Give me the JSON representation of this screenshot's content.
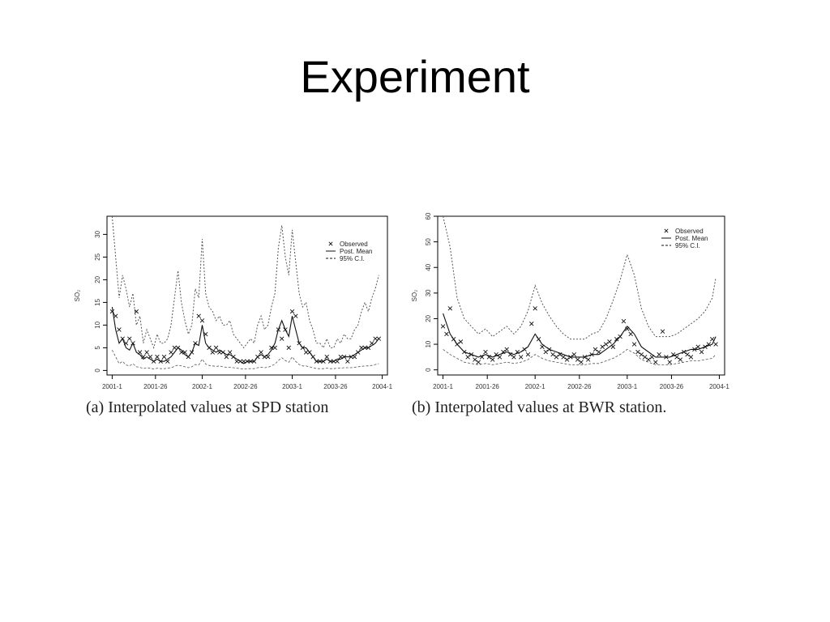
{
  "slide": {
    "title": "Experiment"
  },
  "captions": {
    "a": "(a) Interpolated values at SPD station",
    "b": "(b) Interpolated values at BWR station."
  },
  "colors": {
    "line": "#111111",
    "ci": "#555555",
    "marker": "#111111",
    "axis": "#000000"
  },
  "chart_data": [
    {
      "type": "line",
      "title": "",
      "xlabel": "",
      "ylabel": "SO₂",
      "x_tick_labels": [
        "2001-1",
        "2001-26",
        "2002-1",
        "2002-26",
        "2003-1",
        "2003-26",
        "2004-1"
      ],
      "x_tick_positions": [
        1,
        26,
        53,
        78,
        105,
        130,
        157
      ],
      "xlim": [
        -2,
        160
      ],
      "ylim": [
        -1,
        34
      ],
      "y_ticks": [
        0,
        5,
        10,
        15,
        20,
        25,
        30
      ],
      "legend": {
        "placement": "top-right",
        "entries": [
          "Observed",
          "Post. Mean",
          "95% C.I."
        ]
      },
      "x": [
        1,
        3,
        5,
        7,
        9,
        11,
        13,
        15,
        17,
        19,
        21,
        23,
        25,
        27,
        29,
        31,
        33,
        35,
        37,
        39,
        41,
        43,
        45,
        47,
        49,
        51,
        53,
        55,
        57,
        59,
        61,
        63,
        65,
        67,
        69,
        71,
        73,
        75,
        77,
        79,
        81,
        83,
        85,
        87,
        89,
        91,
        93,
        95,
        97,
        99,
        101,
        103,
        105,
        107,
        109,
        111,
        113,
        115,
        117,
        119,
        121,
        123,
        125,
        127,
        129,
        131,
        133,
        135,
        137,
        139,
        141,
        143,
        145,
        147,
        149,
        151,
        153,
        155
      ],
      "series": [
        {
          "name": "Post. Mean",
          "values": [
            14,
            9,
            6,
            7,
            5,
            4.5,
            6,
            4,
            3.5,
            2.5,
            3,
            2.5,
            2,
            2.5,
            2,
            2,
            2.5,
            3,
            4,
            5,
            4.5,
            3.5,
            3,
            4,
            6,
            5.5,
            10,
            6,
            5,
            4.5,
            4,
            4.5,
            4,
            3.5,
            3.5,
            3,
            2.5,
            2,
            1.5,
            2,
            2,
            2,
            3,
            3.5,
            3,
            3.5,
            4.5,
            6,
            9,
            11,
            9,
            7.5,
            12,
            9,
            6,
            5,
            5,
            4,
            3,
            2,
            2,
            2,
            2.5,
            2,
            2,
            2.5,
            2.5,
            3,
            3,
            3,
            3.5,
            4,
            4.5,
            5,
            5,
            5.5,
            6,
            7
          ]
        },
        {
          "name": "95% C.I.",
          "values": [
            34,
            25,
            16,
            21,
            18,
            14,
            17,
            10,
            12,
            6,
            9,
            7,
            5,
            8,
            6,
            6,
            7,
            10,
            16,
            22,
            15,
            11,
            8,
            10,
            18,
            16,
            29,
            17,
            14,
            13,
            11,
            12,
            10,
            10,
            11,
            8,
            7,
            6,
            5,
            6,
            7,
            6,
            10,
            12,
            9,
            10,
            14,
            17,
            27,
            32,
            25,
            21,
            31,
            24,
            17,
            14,
            15,
            11,
            9,
            6,
            6,
            5,
            7,
            5,
            5,
            7,
            6,
            8,
            7,
            7,
            9,
            10,
            13,
            15,
            13,
            16,
            18,
            21
          ]
        },
        {
          "name": "95% C.I. lower",
          "values": [
            4.5,
            3,
            1.5,
            2,
            1.2,
            1,
            1.5,
            0.8,
            0.7,
            0.4,
            0.6,
            0.5,
            0.3,
            0.5,
            0.4,
            0.4,
            0.5,
            0.6,
            0.9,
            1.2,
            1,
            0.8,
            0.6,
            0.8,
            1.3,
            1.2,
            2.5,
            1.4,
            1.1,
            1,
            0.9,
            1,
            0.8,
            0.7,
            0.7,
            0.6,
            0.5,
            0.4,
            0.3,
            0.4,
            0.4,
            0.4,
            0.6,
            0.7,
            0.6,
            0.7,
            1,
            1.4,
            2.2,
            2.8,
            2.2,
            1.8,
            3,
            2,
            1.3,
            1,
            1,
            0.8,
            0.6,
            0.4,
            0.4,
            0.4,
            0.5,
            0.4,
            0.4,
            0.5,
            0.5,
            0.6,
            0.6,
            0.6,
            0.7,
            0.8,
            0.9,
            1,
            1,
            1.1,
            1.3,
            1.5
          ]
        }
      ],
      "observed": [
        [
          1,
          13
        ],
        [
          3,
          12
        ],
        [
          5,
          9
        ],
        [
          7,
          7
        ],
        [
          9,
          6
        ],
        [
          11,
          7
        ],
        [
          13,
          6
        ],
        [
          15,
          13
        ],
        [
          17,
          4
        ],
        [
          19,
          3
        ],
        [
          21,
          4
        ],
        [
          23,
          3
        ],
        [
          25,
          2
        ],
        [
          27,
          3
        ],
        [
          29,
          2
        ],
        [
          31,
          3
        ],
        [
          33,
          2
        ],
        [
          35,
          4
        ],
        [
          37,
          5
        ],
        [
          39,
          5
        ],
        [
          41,
          4
        ],
        [
          43,
          4
        ],
        [
          45,
          3
        ],
        [
          47,
          4
        ],
        [
          49,
          6
        ],
        [
          51,
          12
        ],
        [
          53,
          11
        ],
        [
          55,
          8
        ],
        [
          57,
          5
        ],
        [
          59,
          4
        ],
        [
          61,
          5
        ],
        [
          63,
          4
        ],
        [
          65,
          4
        ],
        [
          67,
          3
        ],
        [
          69,
          4
        ],
        [
          71,
          3
        ],
        [
          73,
          2
        ],
        [
          75,
          2
        ],
        [
          77,
          2
        ],
        [
          79,
          2
        ],
        [
          81,
          2
        ],
        [
          83,
          2
        ],
        [
          85,
          3
        ],
        [
          87,
          4
        ],
        [
          89,
          3
        ],
        [
          91,
          3
        ],
        [
          93,
          5
        ],
        [
          95,
          5
        ],
        [
          97,
          9
        ],
        [
          99,
          7
        ],
        [
          101,
          9
        ],
        [
          103,
          5
        ],
        [
          105,
          13
        ],
        [
          107,
          12
        ],
        [
          109,
          6
        ],
        [
          111,
          5
        ],
        [
          113,
          4
        ],
        [
          115,
          4
        ],
        [
          117,
          3
        ],
        [
          119,
          2
        ],
        [
          121,
          2
        ],
        [
          123,
          2
        ],
        [
          125,
          3
        ],
        [
          127,
          2
        ],
        [
          129,
          2
        ],
        [
          131,
          2
        ],
        [
          133,
          3
        ],
        [
          135,
          3
        ],
        [
          137,
          2
        ],
        [
          139,
          3
        ],
        [
          141,
          3
        ],
        [
          143,
          4
        ],
        [
          145,
          5
        ],
        [
          147,
          5
        ],
        [
          149,
          5
        ],
        [
          151,
          6
        ],
        [
          153,
          7
        ],
        [
          155,
          7
        ]
      ]
    },
    {
      "type": "line",
      "title": "",
      "xlabel": "",
      "ylabel": "SO₂",
      "x_tick_labels": [
        "2001-1",
        "2001-26",
        "2002-1",
        "2002-26",
        "2003-1",
        "2003-26",
        "2004-1"
      ],
      "x_tick_positions": [
        1,
        26,
        53,
        78,
        105,
        130,
        157
      ],
      "xlim": [
        -2,
        160
      ],
      "ylim": [
        -2,
        60
      ],
      "y_ticks": [
        0,
        10,
        20,
        30,
        40,
        50,
        60
      ],
      "legend": {
        "placement": "top-right",
        "entries": [
          "Observed",
          "Post. Mean",
          "95% C.I."
        ]
      },
      "x": [
        1,
        5,
        9,
        13,
        17,
        21,
        25,
        29,
        33,
        37,
        41,
        45,
        49,
        53,
        57,
        61,
        65,
        69,
        73,
        77,
        81,
        85,
        89,
        93,
        97,
        101,
        105,
        109,
        113,
        117,
        121,
        125,
        129,
        133,
        137,
        141,
        145,
        149,
        153,
        155
      ],
      "series": [
        {
          "name": "Post. Mean",
          "values": [
            22,
            14,
            10,
            7,
            6,
            5,
            6,
            5,
            6,
            7,
            6,
            7,
            9,
            14,
            10,
            8,
            7,
            6,
            5,
            5,
            5,
            6,
            6,
            8,
            10,
            13,
            17,
            14,
            9,
            7,
            5,
            5,
            5,
            6,
            7,
            8,
            8,
            9,
            10,
            13
          ]
        },
        {
          "name": "95% C.I.",
          "values": [
            60,
            48,
            28,
            20,
            17,
            14,
            16,
            13,
            15,
            17,
            14,
            17,
            23,
            33,
            26,
            21,
            17,
            14,
            12,
            12,
            12,
            14,
            15,
            20,
            27,
            35,
            45,
            37,
            24,
            17,
            13,
            13,
            13,
            14,
            16,
            18,
            20,
            23,
            28,
            36
          ]
        },
        {
          "name": "95% C.I. lower",
          "values": [
            8,
            6,
            4.5,
            3,
            2.5,
            2,
            2.5,
            2,
            2.5,
            3,
            2.5,
            3,
            4,
            6,
            4.5,
            3.5,
            3,
            2.5,
            2,
            2,
            2,
            2.5,
            2.5,
            3.5,
            4.5,
            6,
            8,
            6.5,
            4,
            3,
            2,
            2,
            2,
            2.5,
            3,
            3.5,
            3.5,
            4,
            4.5,
            6
          ]
        }
      ],
      "observed": [
        [
          1,
          17
        ],
        [
          3,
          14
        ],
        [
          5,
          24
        ],
        [
          7,
          12
        ],
        [
          9,
          10
        ],
        [
          11,
          11
        ],
        [
          13,
          7
        ],
        [
          15,
          5
        ],
        [
          17,
          6
        ],
        [
          19,
          4
        ],
        [
          21,
          3
        ],
        [
          23,
          5
        ],
        [
          25,
          7
        ],
        [
          27,
          5
        ],
        [
          29,
          4
        ],
        [
          31,
          6
        ],
        [
          33,
          5
        ],
        [
          35,
          7
        ],
        [
          37,
          8
        ],
        [
          39,
          6
        ],
        [
          41,
          5
        ],
        [
          43,
          7
        ],
        [
          45,
          5
        ],
        [
          47,
          8
        ],
        [
          49,
          6
        ],
        [
          51,
          18
        ],
        [
          53,
          24
        ],
        [
          55,
          12
        ],
        [
          57,
          9
        ],
        [
          59,
          7
        ],
        [
          61,
          8
        ],
        [
          63,
          6
        ],
        [
          65,
          5
        ],
        [
          67,
          6
        ],
        [
          69,
          5
        ],
        [
          71,
          4
        ],
        [
          73,
          5
        ],
        [
          75,
          6
        ],
        [
          77,
          4
        ],
        [
          79,
          3
        ],
        [
          81,
          5
        ],
        [
          83,
          4
        ],
        [
          85,
          6
        ],
        [
          87,
          8
        ],
        [
          89,
          7
        ],
        [
          91,
          9
        ],
        [
          93,
          10
        ],
        [
          95,
          11
        ],
        [
          97,
          9
        ],
        [
          99,
          12
        ],
        [
          101,
          13
        ],
        [
          103,
          19
        ],
        [
          105,
          16
        ],
        [
          107,
          14
        ],
        [
          109,
          10
        ],
        [
          111,
          7
        ],
        [
          113,
          6
        ],
        [
          115,
          5
        ],
        [
          117,
          4
        ],
        [
          119,
          5
        ],
        [
          121,
          3
        ],
        [
          123,
          6
        ],
        [
          125,
          15
        ],
        [
          127,
          5
        ],
        [
          129,
          3
        ],
        [
          131,
          6
        ],
        [
          133,
          5
        ],
        [
          135,
          4
        ],
        [
          137,
          7
        ],
        [
          139,
          6
        ],
        [
          141,
          5
        ],
        [
          143,
          8
        ],
        [
          145,
          9
        ],
        [
          147,
          7
        ],
        [
          149,
          9
        ],
        [
          151,
          10
        ],
        [
          153,
          12
        ],
        [
          155,
          10
        ]
      ]
    }
  ]
}
